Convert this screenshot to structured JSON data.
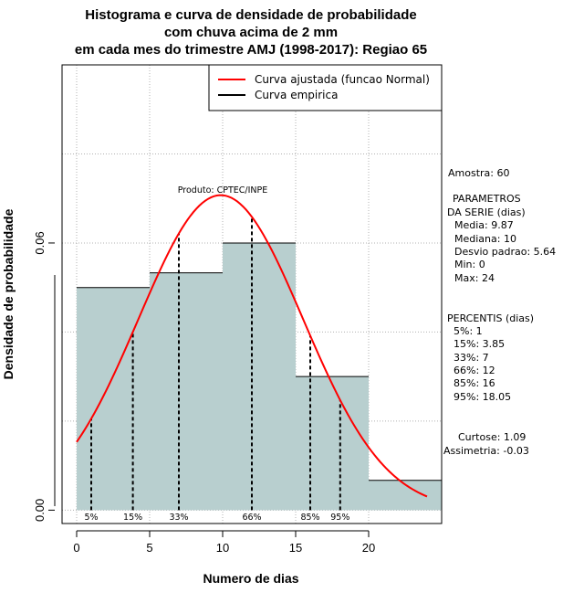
{
  "chart_data": {
    "type": "bar",
    "title_lines": [
      "Histograma e curva de densidade de probabilidade",
      "com chuva acima de 2 mm",
      "em cada mes do trimestre AMJ (1998-2017): Regiao 65"
    ],
    "xlabel": "Numero de dias",
    "ylabel": "Densidade de probabilidade",
    "xlim": [
      -1,
      25
    ],
    "ylim": [
      -0.003,
      0.1
    ],
    "x_ticks": [
      "0",
      "5",
      "10",
      "15",
      "20"
    ],
    "y_ticks": [
      "0.00",
      "0.06"
    ],
    "bins": [
      {
        "from": 0,
        "to": 5,
        "density": 0.05
      },
      {
        "from": 5,
        "to": 10,
        "density": 0.0533
      },
      {
        "from": 10,
        "to": 15,
        "density": 0.06
      },
      {
        "from": 15,
        "to": 20,
        "density": 0.03
      },
      {
        "from": 20,
        "to": 25,
        "density": 0.0067
      }
    ],
    "normal_curve": {
      "mean": 9.87,
      "sd": 5.64,
      "x_from": 0,
      "x_to": 24
    },
    "percentile_lines": [
      {
        "label": "5%",
        "x": 1
      },
      {
        "label": "15%",
        "x": 3.85
      },
      {
        "label": "33%",
        "x": 7
      },
      {
        "label": "66%",
        "x": 12
      },
      {
        "label": "85%",
        "x": 16
      },
      {
        "label": "95%",
        "x": 18.05
      }
    ],
    "legend": {
      "position": "top-right",
      "items": [
        {
          "label": "Curva ajustada (funcao Normal)",
          "color": "#ff0000"
        },
        {
          "label": "Curva empirica",
          "color": "#000000"
        }
      ]
    },
    "annotation": "Produto: CPTEC/INPE",
    "side_panel": {
      "sample": "Amostra: 60",
      "params_title_1": "PARAMETROS",
      "params_title_2": "DA SERIE (dias)",
      "params": [
        "Media: 9.87",
        "Mediana: 10",
        "Desvio padrao: 5.64",
        "Min: 0",
        "Max: 24"
      ],
      "percentis_title": "PERCENTIS (dias)",
      "percentis": [
        "5%: 1",
        "15%: 3.85",
        "33%: 7",
        "66%: 12",
        "85%: 16",
        "95%: 18.05"
      ],
      "curtose": "Curtose: 1.09",
      "assimetria": "Assimetria: -0.03"
    },
    "colors": {
      "bar_fill": "#b8cfcf",
      "curve": "#ff0000",
      "grid": "#b0b0b0"
    }
  }
}
